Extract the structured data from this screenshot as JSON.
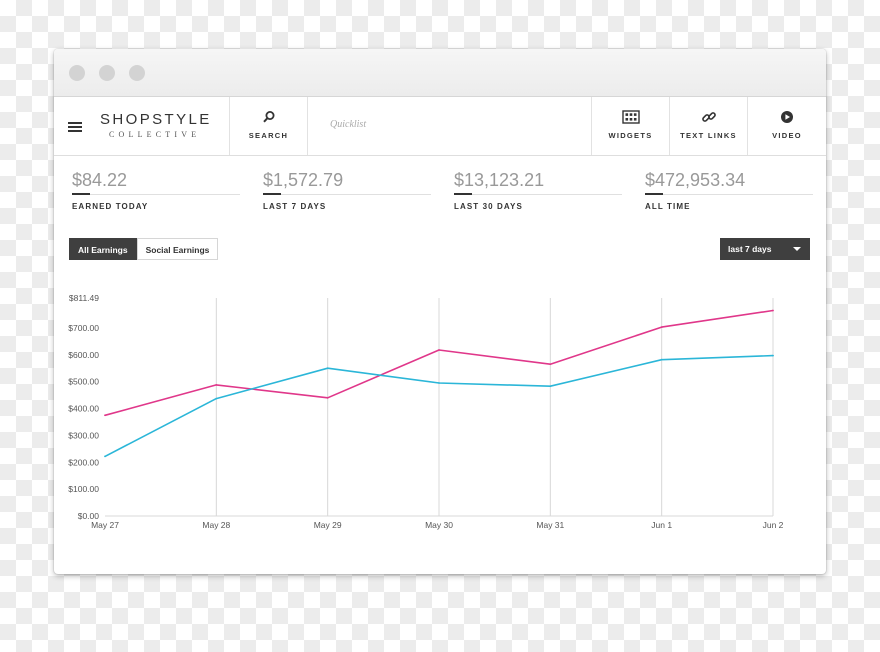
{
  "brand": {
    "name": "SHOPSTYLE",
    "tagline": "COLLECTIVE"
  },
  "nav": {
    "search_label": "SEARCH",
    "quicklist_placeholder": "Quicklist",
    "items": [
      {
        "label": "WIDGETS",
        "icon": "grid-icon"
      },
      {
        "label": "TEXT LINKS",
        "icon": "link-icon"
      },
      {
        "label": "VIDEO",
        "icon": "play-icon"
      }
    ]
  },
  "stats": [
    {
      "value": "$84.22",
      "label": "EARNED TODAY"
    },
    {
      "value": "$1,572.79",
      "label": "LAST 7 DAYS"
    },
    {
      "value": "$13,123.21",
      "label": "LAST 30 DAYS"
    },
    {
      "value": "$472,953.34",
      "label": "ALL TIME"
    }
  ],
  "tabs": [
    {
      "label": "All Earnings",
      "active": true
    },
    {
      "label": "Social Earnings",
      "active": false
    }
  ],
  "range_select": {
    "value": "last 7 days"
  },
  "colors": {
    "series_pink": "#e0378a",
    "series_blue": "#2bb6d8",
    "dark": "#3f3f3f"
  },
  "chart_data": {
    "type": "line",
    "categories": [
      "May 27",
      "May 28",
      "May 29",
      "May 30",
      "May 31",
      "Jun 1",
      "Jun 2"
    ],
    "y_ticks": [
      "$811.49",
      "$700.00",
      "$600.00",
      "$500.00",
      "$400.00",
      "$300.00",
      "$200.00",
      "$100.00",
      "$0.00"
    ],
    "ylim": [
      0,
      811.49
    ],
    "grid": "vertical",
    "series": [
      {
        "color": "#e0378a",
        "values": [
          375,
          488,
          440,
          618,
          565,
          703,
          765
        ]
      },
      {
        "color": "#2bb6d8",
        "values": [
          222,
          437,
          550,
          495,
          483,
          582,
          597
        ]
      }
    ]
  }
}
